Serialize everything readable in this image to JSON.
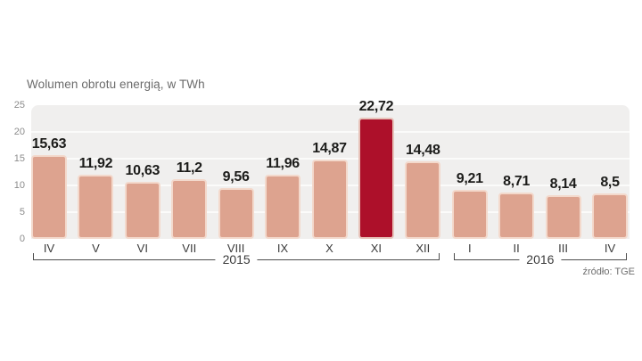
{
  "title": "Wolumen obrotu energią, w TWh",
  "source": "źródło: TGE",
  "chart_data": {
    "type": "bar",
    "title": "Wolumen obrotu energią, w TWh",
    "categories": [
      "IV",
      "V",
      "VI",
      "VII",
      "VIII",
      "IX",
      "X",
      "XI",
      "XII",
      "I",
      "II",
      "III",
      "IV"
    ],
    "values": [
      15.63,
      11.92,
      10.63,
      11.2,
      9.56,
      11.96,
      14.87,
      22.72,
      14.48,
      9.21,
      8.71,
      8.14,
      8.5
    ],
    "value_labels": [
      "15,63",
      "11,92",
      "10,63",
      "11,2",
      "9,56",
      "11,96",
      "14,87",
      "22,72",
      "14,48",
      "9,21",
      "8,71",
      "8,14",
      "8,5"
    ],
    "highlight_index": 7,
    "xlabel": "",
    "ylabel": "TWh",
    "ylim": [
      0,
      25
    ],
    "yticks": [
      0,
      5,
      10,
      15,
      20,
      25
    ],
    "grid": true,
    "legend": "none",
    "groups": [
      {
        "label": "2015",
        "from": 0,
        "to": 8
      },
      {
        "label": "2016",
        "from": 9,
        "to": 12
      }
    ],
    "colors": {
      "bar": "#dda38f",
      "bar_border": "#f3d9cc",
      "highlight": "#ad102a",
      "highlight_border": "#e7c3ba",
      "plot_background": "#f0efee",
      "gridline": "#fbfbfa",
      "value_label": "#1c1c1a",
      "axis_label": "#8c8c8c",
      "month_label": "#3b3b3b",
      "bracket": "#4d4d4d",
      "title": "#6b6b6b",
      "source": "#6f6f6f"
    }
  }
}
